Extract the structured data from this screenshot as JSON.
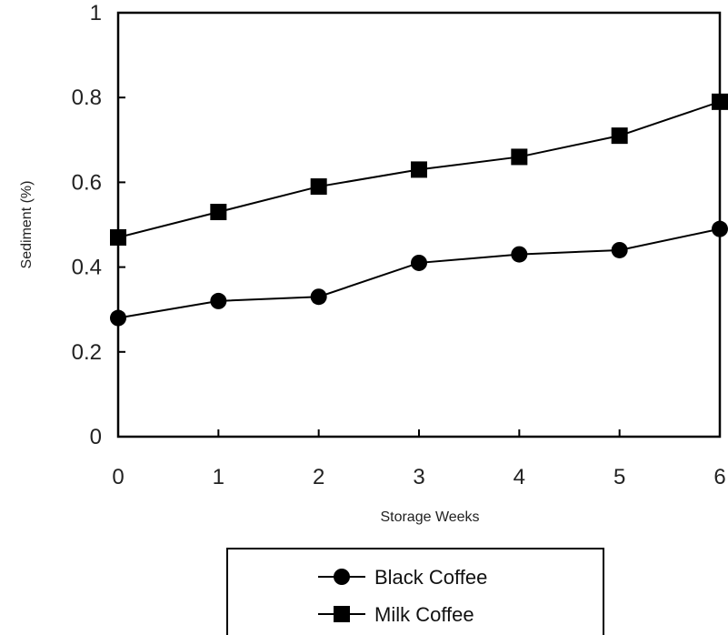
{
  "chart_data": {
    "type": "line",
    "title": "",
    "xlabel": "Storage Weeks",
    "ylabel": "Sediment (%)",
    "x": [
      0,
      1,
      2,
      3,
      4,
      5,
      6
    ],
    "xlim": [
      0,
      6
    ],
    "ylim": [
      0,
      1
    ],
    "x_ticks": [
      "0",
      "1",
      "2",
      "3",
      "4",
      "5",
      "6"
    ],
    "y_ticks": [
      "0",
      "0.2",
      "0.4",
      "0.6",
      "0.8",
      "1"
    ],
    "grid": false,
    "legend_position": "bottom",
    "series": [
      {
        "name": "Black Coffee",
        "marker": "circle",
        "color": "#000000",
        "values": [
          0.28,
          0.32,
          0.33,
          0.41,
          0.43,
          0.44,
          0.49
        ]
      },
      {
        "name": "Milk Coffee",
        "marker": "square",
        "color": "#000000",
        "values": [
          0.47,
          0.53,
          0.59,
          0.63,
          0.66,
          0.71,
          0.79
        ]
      }
    ]
  }
}
